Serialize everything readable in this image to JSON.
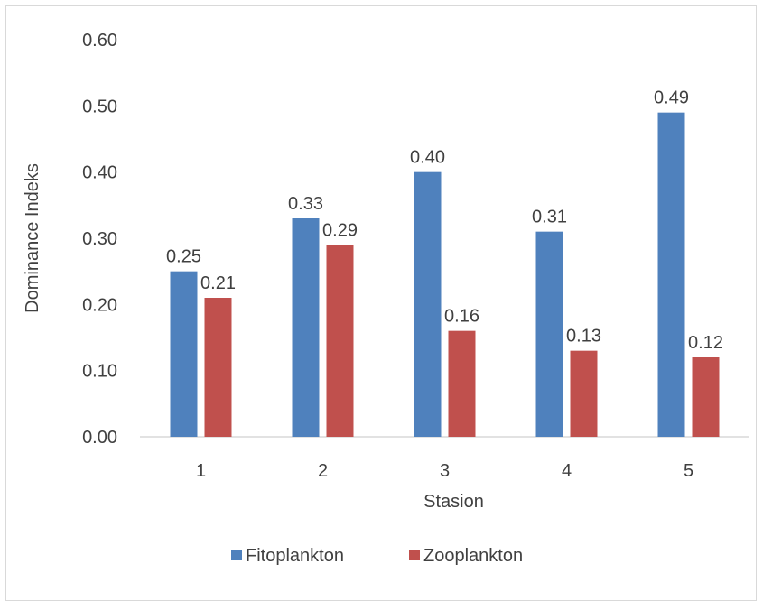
{
  "chart_data": {
    "type": "bar",
    "title": "",
    "xlabel": "Stasion",
    "ylabel": "Dominance Indeks",
    "categories": [
      "1",
      "2",
      "3",
      "4",
      "5"
    ],
    "series": [
      {
        "name": "Fitoplankton",
        "color": "#4f81bd",
        "values": [
          0.25,
          0.33,
          0.4,
          0.31,
          0.49
        ]
      },
      {
        "name": "Zooplankton",
        "color": "#c0504d",
        "values": [
          0.21,
          0.29,
          0.16,
          0.13,
          0.12
        ]
      }
    ],
    "ylim": [
      0,
      0.6
    ],
    "yticks": [
      "0.00",
      "0.10",
      "0.20",
      "0.30",
      "0.40",
      "0.50",
      "0.60"
    ],
    "grid": false,
    "legend_position": "bottom"
  }
}
